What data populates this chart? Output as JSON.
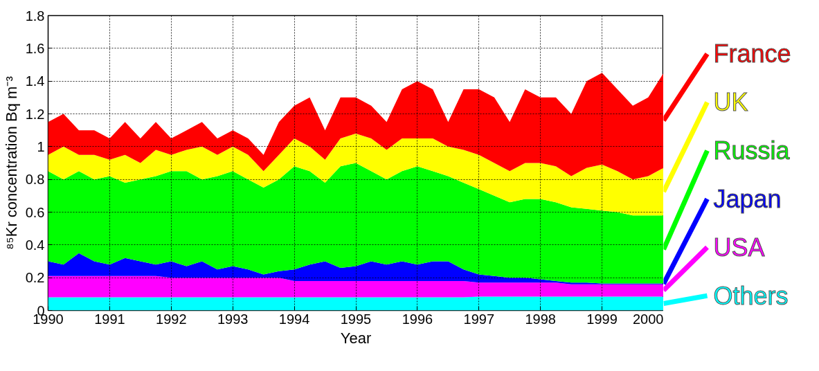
{
  "chart_data": {
    "type": "area",
    "stacked": true,
    "xlabel": "Year",
    "ylabel": "⁸⁵Kr concentration Bq m⁻³",
    "x": [
      1990.0,
      1990.25,
      1990.5,
      1990.75,
      1991.0,
      1991.25,
      1991.5,
      1991.75,
      1992.0,
      1992.25,
      1992.5,
      1992.75,
      1993.0,
      1993.25,
      1993.5,
      1993.75,
      1994.0,
      1994.25,
      1994.5,
      1994.75,
      1995.0,
      1995.25,
      1995.5,
      1995.75,
      1996.0,
      1996.25,
      1996.5,
      1996.75,
      1997.0,
      1997.25,
      1997.5,
      1997.75,
      1998.0,
      1998.25,
      1998.5,
      1998.75,
      1999.0,
      1999.25,
      1999.5,
      1999.75,
      2000.0
    ],
    "series": [
      {
        "name": "Others",
        "color": "#00ffff",
        "values": [
          0.08,
          0.08,
          0.08,
          0.08,
          0.08,
          0.08,
          0.08,
          0.08,
          0.08,
          0.08,
          0.08,
          0.08,
          0.08,
          0.08,
          0.08,
          0.08,
          0.08,
          0.08,
          0.08,
          0.08,
          0.08,
          0.08,
          0.08,
          0.08,
          0.08,
          0.08,
          0.08,
          0.08,
          0.085,
          0.085,
          0.085,
          0.085,
          0.085,
          0.085,
          0.085,
          0.085,
          0.085,
          0.085,
          0.085,
          0.085,
          0.085
        ]
      },
      {
        "name": "USA",
        "color": "#ff00ff",
        "values": [
          0.13,
          0.13,
          0.13,
          0.13,
          0.13,
          0.13,
          0.13,
          0.13,
          0.12,
          0.12,
          0.12,
          0.12,
          0.12,
          0.12,
          0.12,
          0.12,
          0.1,
          0.1,
          0.1,
          0.1,
          0.1,
          0.1,
          0.1,
          0.1,
          0.1,
          0.1,
          0.1,
          0.1,
          0.085,
          0.085,
          0.085,
          0.085,
          0.085,
          0.085,
          0.075,
          0.075,
          0.075,
          0.075,
          0.075,
          0.075,
          0.075
        ]
      },
      {
        "name": "Japan",
        "color": "#0000ff",
        "values": [
          0.09,
          0.07,
          0.14,
          0.09,
          0.07,
          0.11,
          0.09,
          0.07,
          0.1,
          0.07,
          0.1,
          0.05,
          0.07,
          0.05,
          0.02,
          0.04,
          0.07,
          0.1,
          0.12,
          0.08,
          0.09,
          0.12,
          0.1,
          0.12,
          0.1,
          0.12,
          0.12,
          0.07,
          0.05,
          0.04,
          0.03,
          0.03,
          0.02,
          0.01,
          0.01,
          0.01,
          0.005,
          0.005,
          0.005,
          0.005,
          0.005
        ]
      },
      {
        "name": "Russia",
        "color": "#00ff00",
        "values": [
          0.55,
          0.52,
          0.5,
          0.5,
          0.54,
          0.46,
          0.5,
          0.54,
          0.55,
          0.58,
          0.5,
          0.57,
          0.58,
          0.55,
          0.53,
          0.56,
          0.63,
          0.57,
          0.48,
          0.62,
          0.63,
          0.55,
          0.52,
          0.55,
          0.6,
          0.55,
          0.52,
          0.53,
          0.52,
          0.49,
          0.46,
          0.48,
          0.49,
          0.48,
          0.46,
          0.45,
          0.445,
          0.435,
          0.415,
          0.415,
          0.415
        ]
      },
      {
        "name": "UK",
        "color": "#ffff00",
        "values": [
          0.1,
          0.2,
          0.1,
          0.15,
          0.1,
          0.17,
          0.1,
          0.16,
          0.1,
          0.13,
          0.2,
          0.13,
          0.15,
          0.15,
          0.1,
          0.15,
          0.17,
          0.15,
          0.14,
          0.17,
          0.18,
          0.2,
          0.18,
          0.2,
          0.17,
          0.2,
          0.18,
          0.2,
          0.21,
          0.2,
          0.19,
          0.22,
          0.22,
          0.22,
          0.19,
          0.25,
          0.28,
          0.25,
          0.22,
          0.24,
          0.29
        ]
      },
      {
        "name": "France",
        "color": "#ff0000",
        "values": [
          0.2,
          0.2,
          0.15,
          0.15,
          0.13,
          0.2,
          0.15,
          0.17,
          0.1,
          0.12,
          0.15,
          0.1,
          0.1,
          0.1,
          0.1,
          0.2,
          0.2,
          0.3,
          0.18,
          0.25,
          0.22,
          0.2,
          0.17,
          0.3,
          0.35,
          0.3,
          0.15,
          0.37,
          0.4,
          0.4,
          0.3,
          0.45,
          0.4,
          0.42,
          0.38,
          0.53,
          0.56,
          0.5,
          0.45,
          0.48,
          0.58
        ]
      }
    ],
    "xlim": [
      1990,
      2000
    ],
    "xticks": [
      1990,
      1991,
      1992,
      1993,
      1994,
      1995,
      1996,
      1997,
      1998,
      1999,
      2000
    ],
    "ylim": [
      0,
      1.8
    ],
    "yticks": [
      0,
      0.2,
      0.4,
      0.6,
      0.8,
      1,
      1.2,
      1.4,
      1.6,
      1.8
    ],
    "grid": true,
    "legend": "right"
  }
}
